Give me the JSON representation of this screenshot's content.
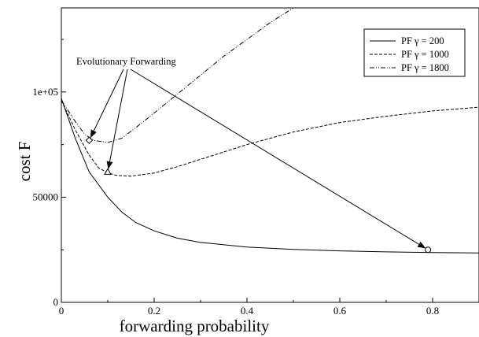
{
  "chart_data": {
    "type": "line",
    "title": "",
    "xlabel": "forwarding probability",
    "ylabel": "cost F",
    "xlim": [
      0,
      0.9
    ],
    "ylim": [
      0,
      140000
    ],
    "x_ticks": [
      0,
      0.2,
      0.4,
      0.6,
      0.8
    ],
    "x_tick_labels": [
      "0",
      "0.2",
      "0.4",
      "0.6",
      "0.8"
    ],
    "y_ticks": [
      0,
      50000,
      100000
    ],
    "y_tick_labels": [
      "0",
      "50000",
      "1e+05"
    ],
    "grid": false,
    "legend_position": "top-right",
    "series": [
      {
        "name": "PF γ = 200",
        "style": "solid",
        "points": [
          [
            0,
            97000
          ],
          [
            0.03,
            78000
          ],
          [
            0.06,
            62000
          ],
          [
            0.1,
            50000
          ],
          [
            0.13,
            43000
          ],
          [
            0.16,
            38000
          ],
          [
            0.2,
            34000
          ],
          [
            0.25,
            30500
          ],
          [
            0.3,
            28500
          ],
          [
            0.4,
            26300
          ],
          [
            0.5,
            25200
          ],
          [
            0.6,
            24500
          ],
          [
            0.7,
            24000
          ],
          [
            0.8,
            23700
          ],
          [
            0.9,
            23500
          ]
        ]
      },
      {
        "name": "PF γ = 1000",
        "style": "dashed",
        "points": [
          [
            0,
            96000
          ],
          [
            0.03,
            82000
          ],
          [
            0.06,
            70000
          ],
          [
            0.08,
            64000
          ],
          [
            0.1,
            61500
          ],
          [
            0.12,
            60300
          ],
          [
            0.15,
            60000
          ],
          [
            0.2,
            61500
          ],
          [
            0.25,
            64500
          ],
          [
            0.3,
            68000
          ],
          [
            0.35,
            71500
          ],
          [
            0.4,
            75000
          ],
          [
            0.5,
            81000
          ],
          [
            0.6,
            85500
          ],
          [
            0.7,
            88500
          ],
          [
            0.8,
            91000
          ],
          [
            0.9,
            92800
          ]
        ]
      },
      {
        "name": "PF γ = 1800",
        "style": "dashdot",
        "points": [
          [
            0,
            96000
          ],
          [
            0.03,
            86000
          ],
          [
            0.05,
            80000
          ],
          [
            0.07,
            77000
          ],
          [
            0.1,
            76000
          ],
          [
            0.13,
            78000
          ],
          [
            0.16,
            83000
          ],
          [
            0.2,
            90000
          ],
          [
            0.25,
            99000
          ],
          [
            0.3,
            108000
          ],
          [
            0.35,
            117000
          ],
          [
            0.4,
            125000
          ],
          [
            0.45,
            133000
          ],
          [
            0.5,
            140000
          ],
          [
            0.55,
            147000
          ]
        ]
      }
    ],
    "markers": [
      {
        "shape": "diamond",
        "x": 0.06,
        "y": 77000
      },
      {
        "shape": "triangle",
        "x": 0.1,
        "y": 62000
      },
      {
        "shape": "circle",
        "x": 0.79,
        "y": 25000
      }
    ],
    "annotation": {
      "text": "Evolutionary Forwarding",
      "targets": [
        [
          0.06,
          77000
        ],
        [
          0.1,
          62000
        ],
        [
          0.79,
          25000
        ]
      ]
    }
  }
}
